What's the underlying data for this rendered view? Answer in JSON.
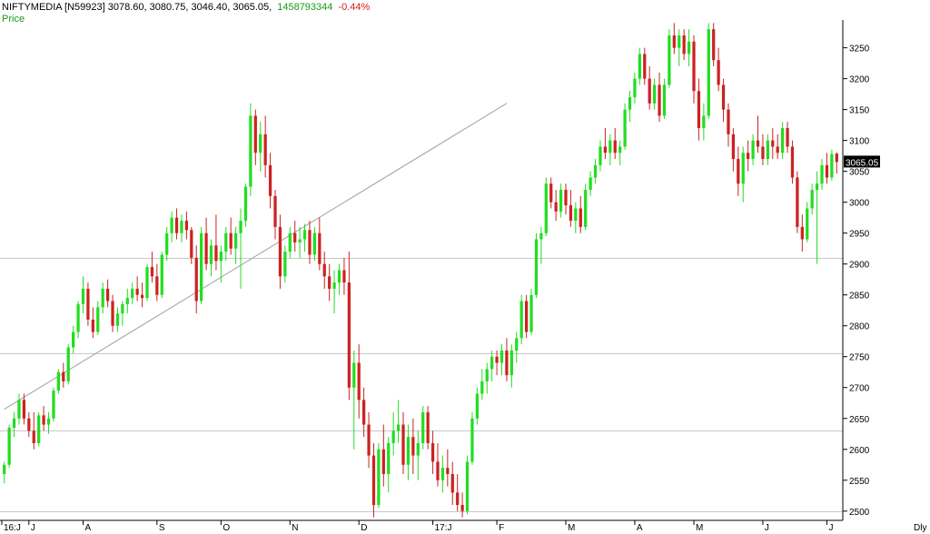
{
  "header": {
    "symbol_ohlc": "NIFTYMEDIA [N59923] 3078.60, 3080.75, 3046.40, 3065.05,",
    "volume": "1458793344",
    "change": "-0.44%"
  },
  "series_label": "Price",
  "period_label": "Dly",
  "last_price_label": "3065.05",
  "colors": {
    "up": "#22dd22",
    "down": "#cc2222",
    "grid": "#c8c8c8",
    "text": "#000000",
    "volume_text": "#1a9a1a",
    "change_text": "#d42020"
  },
  "chart_data": {
    "type": "candlestick",
    "ylim": [
      2485,
      3295
    ],
    "y_ticks": [
      "2500",
      "2550",
      "2600",
      "2650",
      "2700",
      "2750",
      "2800",
      "2850",
      "2900",
      "2950",
      "3000",
      "3050",
      "3100",
      "3150",
      "3200",
      "3250"
    ],
    "x_labels": [
      "16:J",
      "J",
      "A",
      "S",
      "O",
      "N",
      "D",
      "17:J",
      "F",
      "M",
      "A",
      "M",
      "J",
      "J"
    ],
    "horizontal_lines": [
      2500,
      2630,
      2755,
      2910
    ],
    "trendline": {
      "from": {
        "bar": 0,
        "price": 2665
      },
      "to": {
        "bar": 102,
        "price": 3160
      }
    },
    "last_price": 3065.05,
    "bars": [
      {
        "o": 2560,
        "h": 2580,
        "l": 2545,
        "c": 2575
      },
      {
        "o": 2575,
        "h": 2640,
        "l": 2570,
        "c": 2635
      },
      {
        "o": 2635,
        "h": 2660,
        "l": 2620,
        "c": 2650
      },
      {
        "o": 2650,
        "h": 2690,
        "l": 2640,
        "c": 2680
      },
      {
        "o": 2680,
        "h": 2690,
        "l": 2640,
        "c": 2650
      },
      {
        "o": 2650,
        "h": 2660,
        "l": 2620,
        "c": 2630
      },
      {
        "o": 2630,
        "h": 2660,
        "l": 2600,
        "c": 2610
      },
      {
        "o": 2610,
        "h": 2660,
        "l": 2605,
        "c": 2655
      },
      {
        "o": 2655,
        "h": 2670,
        "l": 2630,
        "c": 2640
      },
      {
        "o": 2640,
        "h": 2660,
        "l": 2625,
        "c": 2650
      },
      {
        "o": 2650,
        "h": 2700,
        "l": 2645,
        "c": 2695
      },
      {
        "o": 2695,
        "h": 2730,
        "l": 2690,
        "c": 2725
      },
      {
        "o": 2725,
        "h": 2740,
        "l": 2700,
        "c": 2710
      },
      {
        "o": 2710,
        "h": 2770,
        "l": 2705,
        "c": 2765
      },
      {
        "o": 2765,
        "h": 2800,
        "l": 2755,
        "c": 2790
      },
      {
        "o": 2790,
        "h": 2840,
        "l": 2780,
        "c": 2835
      },
      {
        "o": 2835,
        "h": 2880,
        "l": 2820,
        "c": 2860
      },
      {
        "o": 2860,
        "h": 2870,
        "l": 2800,
        "c": 2810
      },
      {
        "o": 2810,
        "h": 2830,
        "l": 2780,
        "c": 2790
      },
      {
        "o": 2790,
        "h": 2840,
        "l": 2785,
        "c": 2830
      },
      {
        "o": 2830,
        "h": 2870,
        "l": 2820,
        "c": 2860
      },
      {
        "o": 2860,
        "h": 2875,
        "l": 2830,
        "c": 2840
      },
      {
        "o": 2840,
        "h": 2850,
        "l": 2790,
        "c": 2800
      },
      {
        "o": 2800,
        "h": 2830,
        "l": 2790,
        "c": 2820
      },
      {
        "o": 2820,
        "h": 2840,
        "l": 2800,
        "c": 2835
      },
      {
        "o": 2835,
        "h": 2860,
        "l": 2820,
        "c": 2845
      },
      {
        "o": 2845,
        "h": 2870,
        "l": 2835,
        "c": 2860
      },
      {
        "o": 2860,
        "h": 2880,
        "l": 2840,
        "c": 2850
      },
      {
        "o": 2850,
        "h": 2870,
        "l": 2830,
        "c": 2845
      },
      {
        "o": 2845,
        "h": 2900,
        "l": 2840,
        "c": 2895
      },
      {
        "o": 2895,
        "h": 2920,
        "l": 2870,
        "c": 2880
      },
      {
        "o": 2880,
        "h": 2900,
        "l": 2840,
        "c": 2850
      },
      {
        "o": 2850,
        "h": 2920,
        "l": 2845,
        "c": 2915
      },
      {
        "o": 2915,
        "h": 2960,
        "l": 2905,
        "c": 2950
      },
      {
        "o": 2950,
        "h": 2985,
        "l": 2935,
        "c": 2975
      },
      {
        "o": 2975,
        "h": 2990,
        "l": 2940,
        "c": 2950
      },
      {
        "o": 2950,
        "h": 2980,
        "l": 2935,
        "c": 2970
      },
      {
        "o": 2970,
        "h": 2985,
        "l": 2940,
        "c": 2955
      },
      {
        "o": 2955,
        "h": 2960,
        "l": 2900,
        "c": 2910
      },
      {
        "o": 2910,
        "h": 2930,
        "l": 2820,
        "c": 2840
      },
      {
        "o": 2840,
        "h": 2960,
        "l": 2835,
        "c": 2950
      },
      {
        "o": 2950,
        "h": 2975,
        "l": 2890,
        "c": 2900
      },
      {
        "o": 2900,
        "h": 2940,
        "l": 2880,
        "c": 2930
      },
      {
        "o": 2930,
        "h": 2980,
        "l": 2890,
        "c": 2905
      },
      {
        "o": 2905,
        "h": 2930,
        "l": 2870,
        "c": 2920
      },
      {
        "o": 2920,
        "h": 2960,
        "l": 2905,
        "c": 2950
      },
      {
        "o": 2950,
        "h": 2975,
        "l": 2915,
        "c": 2925
      },
      {
        "o": 2925,
        "h": 2960,
        "l": 2900,
        "c": 2950
      },
      {
        "o": 2950,
        "h": 2990,
        "l": 2860,
        "c": 2970
      },
      {
        "o": 2970,
        "h": 3030,
        "l": 2960,
        "c": 3025
      },
      {
        "o": 3025,
        "h": 3160,
        "l": 3010,
        "c": 3140
      },
      {
        "o": 3140,
        "h": 3150,
        "l": 3060,
        "c": 3080
      },
      {
        "o": 3080,
        "h": 3130,
        "l": 3050,
        "c": 3110
      },
      {
        "o": 3110,
        "h": 3140,
        "l": 3040,
        "c": 3060
      },
      {
        "o": 3060,
        "h": 3080,
        "l": 2990,
        "c": 3010
      },
      {
        "o": 3010,
        "h": 3020,
        "l": 2940,
        "c": 2960
      },
      {
        "o": 2960,
        "h": 2980,
        "l": 2860,
        "c": 2880
      },
      {
        "o": 2880,
        "h": 2930,
        "l": 2870,
        "c": 2920
      },
      {
        "o": 2920,
        "h": 2960,
        "l": 2910,
        "c": 2950
      },
      {
        "o": 2950,
        "h": 2970,
        "l": 2920,
        "c": 2935
      },
      {
        "o": 2935,
        "h": 2960,
        "l": 2910,
        "c": 2940
      },
      {
        "o": 2940,
        "h": 2965,
        "l": 2920,
        "c": 2955
      },
      {
        "o": 2955,
        "h": 2970,
        "l": 2900,
        "c": 2915
      },
      {
        "o": 2915,
        "h": 2960,
        "l": 2905,
        "c": 2950
      },
      {
        "o": 2950,
        "h": 2975,
        "l": 2890,
        "c": 2900
      },
      {
        "o": 2900,
        "h": 2920,
        "l": 2860,
        "c": 2880
      },
      {
        "o": 2880,
        "h": 2900,
        "l": 2840,
        "c": 2860
      },
      {
        "o": 2860,
        "h": 2890,
        "l": 2820,
        "c": 2870
      },
      {
        "o": 2870,
        "h": 2900,
        "l": 2850,
        "c": 2890
      },
      {
        "o": 2890,
        "h": 2910,
        "l": 2850,
        "c": 2870
      },
      {
        "o": 2870,
        "h": 2920,
        "l": 2680,
        "c": 2700
      },
      {
        "o": 2700,
        "h": 2760,
        "l": 2600,
        "c": 2740
      },
      {
        "o": 2740,
        "h": 2770,
        "l": 2650,
        "c": 2680
      },
      {
        "o": 2680,
        "h": 2700,
        "l": 2620,
        "c": 2640
      },
      {
        "o": 2640,
        "h": 2660,
        "l": 2570,
        "c": 2590
      },
      {
        "o": 2590,
        "h": 2610,
        "l": 2490,
        "c": 2510
      },
      {
        "o": 2510,
        "h": 2610,
        "l": 2505,
        "c": 2600
      },
      {
        "o": 2600,
        "h": 2640,
        "l": 2540,
        "c": 2560
      },
      {
        "o": 2560,
        "h": 2620,
        "l": 2530,
        "c": 2610
      },
      {
        "o": 2610,
        "h": 2660,
        "l": 2590,
        "c": 2630
      },
      {
        "o": 2630,
        "h": 2680,
        "l": 2610,
        "c": 2640
      },
      {
        "o": 2640,
        "h": 2660,
        "l": 2560,
        "c": 2575
      },
      {
        "o": 2575,
        "h": 2640,
        "l": 2550,
        "c": 2620
      },
      {
        "o": 2620,
        "h": 2650,
        "l": 2560,
        "c": 2590
      },
      {
        "o": 2590,
        "h": 2630,
        "l": 2550,
        "c": 2610
      },
      {
        "o": 2610,
        "h": 2670,
        "l": 2600,
        "c": 2660
      },
      {
        "o": 2660,
        "h": 2670,
        "l": 2600,
        "c": 2610
      },
      {
        "o": 2610,
        "h": 2630,
        "l": 2560,
        "c": 2580
      },
      {
        "o": 2580,
        "h": 2610,
        "l": 2540,
        "c": 2550
      },
      {
        "o": 2550,
        "h": 2590,
        "l": 2530,
        "c": 2570
      },
      {
        "o": 2570,
        "h": 2600,
        "l": 2540,
        "c": 2560
      },
      {
        "o": 2560,
        "h": 2580,
        "l": 2510,
        "c": 2530
      },
      {
        "o": 2530,
        "h": 2560,
        "l": 2500,
        "c": 2510
      },
      {
        "o": 2510,
        "h": 2530,
        "l": 2490,
        "c": 2500
      },
      {
        "o": 2500,
        "h": 2590,
        "l": 2495,
        "c": 2580
      },
      {
        "o": 2580,
        "h": 2660,
        "l": 2575,
        "c": 2650
      },
      {
        "o": 2650,
        "h": 2700,
        "l": 2640,
        "c": 2690
      },
      {
        "o": 2690,
        "h": 2730,
        "l": 2680,
        "c": 2710
      },
      {
        "o": 2710,
        "h": 2740,
        "l": 2690,
        "c": 2730
      },
      {
        "o": 2730,
        "h": 2760,
        "l": 2710,
        "c": 2750
      },
      {
        "o": 2750,
        "h": 2760,
        "l": 2720,
        "c": 2740
      },
      {
        "o": 2740,
        "h": 2770,
        "l": 2720,
        "c": 2760
      },
      {
        "o": 2760,
        "h": 2780,
        "l": 2710,
        "c": 2720
      },
      {
        "o": 2720,
        "h": 2770,
        "l": 2700,
        "c": 2760
      },
      {
        "o": 2760,
        "h": 2790,
        "l": 2740,
        "c": 2780
      },
      {
        "o": 2780,
        "h": 2850,
        "l": 2770,
        "c": 2840
      },
      {
        "o": 2840,
        "h": 2850,
        "l": 2780,
        "c": 2790
      },
      {
        "o": 2790,
        "h": 2860,
        "l": 2785,
        "c": 2850
      },
      {
        "o": 2850,
        "h": 2950,
        "l": 2845,
        "c": 2940
      },
      {
        "o": 2940,
        "h": 2960,
        "l": 2900,
        "c": 2950
      },
      {
        "o": 2950,
        "h": 3040,
        "l": 2945,
        "c": 3030
      },
      {
        "o": 3030,
        "h": 3040,
        "l": 2990,
        "c": 3000
      },
      {
        "o": 3000,
        "h": 3020,
        "l": 2970,
        "c": 2985
      },
      {
        "o": 2985,
        "h": 3030,
        "l": 2975,
        "c": 3020
      },
      {
        "o": 3020,
        "h": 3030,
        "l": 2980,
        "c": 2995
      },
      {
        "o": 2995,
        "h": 3020,
        "l": 2960,
        "c": 2970
      },
      {
        "o": 2970,
        "h": 3000,
        "l": 2950,
        "c": 2990
      },
      {
        "o": 2990,
        "h": 3010,
        "l": 2950,
        "c": 2960
      },
      {
        "o": 2960,
        "h": 3030,
        "l": 2955,
        "c": 3020
      },
      {
        "o": 3020,
        "h": 3050,
        "l": 3010,
        "c": 3040
      },
      {
        "o": 3040,
        "h": 3070,
        "l": 3030,
        "c": 3060
      },
      {
        "o": 3060,
        "h": 3100,
        "l": 3050,
        "c": 3090
      },
      {
        "o": 3090,
        "h": 3120,
        "l": 3070,
        "c": 3080
      },
      {
        "o": 3080,
        "h": 3110,
        "l": 3060,
        "c": 3100
      },
      {
        "o": 3100,
        "h": 3120,
        "l": 3070,
        "c": 3080
      },
      {
        "o": 3080,
        "h": 3100,
        "l": 3060,
        "c": 3090
      },
      {
        "o": 3090,
        "h": 3160,
        "l": 3085,
        "c": 3150
      },
      {
        "o": 3150,
        "h": 3180,
        "l": 3130,
        "c": 3170
      },
      {
        "o": 3170,
        "h": 3210,
        "l": 3160,
        "c": 3200
      },
      {
        "o": 3200,
        "h": 3250,
        "l": 3190,
        "c": 3240
      },
      {
        "o": 3240,
        "h": 3250,
        "l": 3190,
        "c": 3200
      },
      {
        "o": 3200,
        "h": 3220,
        "l": 3150,
        "c": 3160
      },
      {
        "o": 3160,
        "h": 3200,
        "l": 3150,
        "c": 3190
      },
      {
        "o": 3190,
        "h": 3210,
        "l": 3130,
        "c": 3140
      },
      {
        "o": 3140,
        "h": 3200,
        "l": 3135,
        "c": 3190
      },
      {
        "o": 3190,
        "h": 3280,
        "l": 3185,
        "c": 3270
      },
      {
        "o": 3270,
        "h": 3290,
        "l": 3240,
        "c": 3250
      },
      {
        "o": 3250,
        "h": 3280,
        "l": 3220,
        "c": 3270
      },
      {
        "o": 3270,
        "h": 3280,
        "l": 3230,
        "c": 3240
      },
      {
        "o": 3240,
        "h": 3280,
        "l": 3220,
        "c": 3260
      },
      {
        "o": 3260,
        "h": 3270,
        "l": 3160,
        "c": 3180
      },
      {
        "o": 3180,
        "h": 3200,
        "l": 3100,
        "c": 3120
      },
      {
        "o": 3120,
        "h": 3160,
        "l": 3100,
        "c": 3140
      },
      {
        "o": 3140,
        "h": 3290,
        "l": 3135,
        "c": 3280
      },
      {
        "o": 3280,
        "h": 3290,
        "l": 3220,
        "c": 3230
      },
      {
        "o": 3230,
        "h": 3250,
        "l": 3180,
        "c": 3190
      },
      {
        "o": 3190,
        "h": 3200,
        "l": 3130,
        "c": 3150
      },
      {
        "o": 3150,
        "h": 3160,
        "l": 3090,
        "c": 3110
      },
      {
        "o": 3110,
        "h": 3120,
        "l": 3050,
        "c": 3070
      },
      {
        "o": 3070,
        "h": 3090,
        "l": 3010,
        "c": 3030
      },
      {
        "o": 3030,
        "h": 3090,
        "l": 3000,
        "c": 3080
      },
      {
        "o": 3080,
        "h": 3100,
        "l": 3050,
        "c": 3070
      },
      {
        "o": 3070,
        "h": 3110,
        "l": 3060,
        "c": 3100
      },
      {
        "o": 3100,
        "h": 3140,
        "l": 3080,
        "c": 3090
      },
      {
        "o": 3090,
        "h": 3110,
        "l": 3060,
        "c": 3070
      },
      {
        "o": 3070,
        "h": 3110,
        "l": 3060,
        "c": 3100
      },
      {
        "o": 3100,
        "h": 3120,
        "l": 3070,
        "c": 3090
      },
      {
        "o": 3090,
        "h": 3110,
        "l": 3070,
        "c": 3080
      },
      {
        "o": 3080,
        "h": 3130,
        "l": 3070,
        "c": 3120
      },
      {
        "o": 3120,
        "h": 3130,
        "l": 3080,
        "c": 3090
      },
      {
        "o": 3090,
        "h": 3100,
        "l": 3030,
        "c": 3040
      },
      {
        "o": 3040,
        "h": 3050,
        "l": 2950,
        "c": 2960
      },
      {
        "o": 2960,
        "h": 2980,
        "l": 2920,
        "c": 2940
      },
      {
        "o": 2940,
        "h": 3000,
        "l": 2935,
        "c": 2990
      },
      {
        "o": 2990,
        "h": 3030,
        "l": 2980,
        "c": 3020
      },
      {
        "o": 3020,
        "h": 3050,
        "l": 2900,
        "c": 3030
      },
      {
        "o": 3030,
        "h": 3070,
        "l": 3020,
        "c": 3060
      },
      {
        "o": 3060,
        "h": 3080,
        "l": 3030,
        "c": 3040
      },
      {
        "o": 3040,
        "h": 3085,
        "l": 3035,
        "c": 3078
      },
      {
        "o": 3078.6,
        "h": 3080.75,
        "l": 3046.4,
        "c": 3065.05
      }
    ]
  }
}
